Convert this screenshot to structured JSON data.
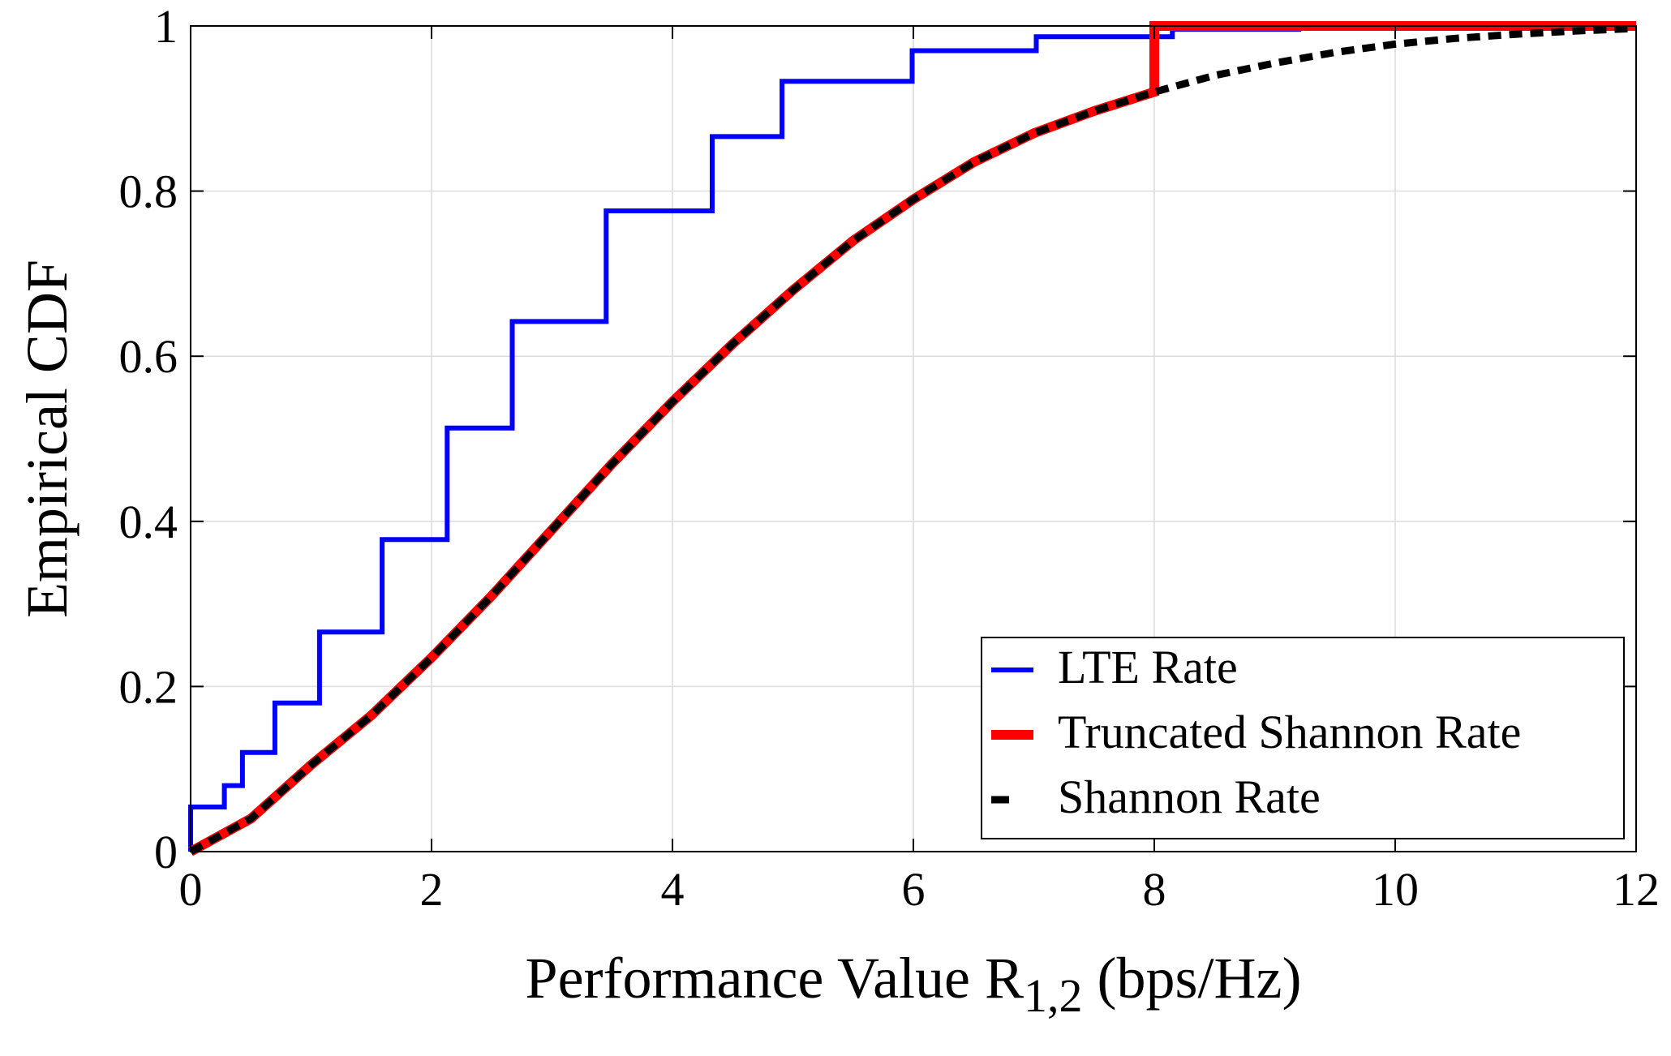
{
  "chart_data": {
    "type": "line",
    "title": "",
    "xlabel": {
      "main": "Performance Value R",
      "subscript": "1,2",
      "unit": " (bps/Hz)"
    },
    "ylabel": "Empirical CDF",
    "xlim": [
      0,
      12
    ],
    "ylim": [
      0,
      1
    ],
    "xticks": [
      0,
      2,
      4,
      6,
      8,
      10,
      12
    ],
    "yticks": [
      0,
      0.2,
      0.4,
      0.6,
      0.8,
      1
    ],
    "xtick_labels": [
      "0",
      "2",
      "4",
      "6",
      "8",
      "10",
      "12"
    ],
    "ytick_labels": [
      "0",
      "0.2",
      "0.4",
      "0.6",
      "0.8",
      "1"
    ],
    "grid": true,
    "legend_position": "bottom-right",
    "series": [
      {
        "name": "LTE Rate",
        "style": "step",
        "color": "#0000ff",
        "x": [
          0,
          0,
          0.28,
          0.28,
          0.43,
          0.43,
          0.7,
          0.7,
          1.07,
          1.07,
          1.59,
          1.59,
          2.13,
          2.13,
          2.67,
          2.67,
          3.45,
          3.45,
          4.33,
          4.33,
          4.91,
          4.91,
          5.99,
          5.99,
          7.02,
          7.02,
          8.15,
          8.15,
          9.22
        ],
        "y": [
          0,
          0.054,
          0.054,
          0.08,
          0.08,
          0.12,
          0.12,
          0.18,
          0.18,
          0.266,
          0.266,
          0.378,
          0.378,
          0.513,
          0.513,
          0.642,
          0.642,
          0.776,
          0.776,
          0.866,
          0.866,
          0.933,
          0.933,
          0.97,
          0.97,
          0.987,
          0.987,
          0.996,
          0.996
        ]
      },
      {
        "name": "Truncated Shannon Rate",
        "style": "solid",
        "color": "#ff0000",
        "x": [
          0,
          0.5,
          1,
          1.5,
          2,
          2.5,
          3,
          3.5,
          4,
          4.5,
          5,
          5.5,
          6,
          6.5,
          7,
          7.5,
          8,
          8,
          12
        ],
        "y": [
          0,
          0.04,
          0.105,
          0.165,
          0.235,
          0.31,
          0.39,
          0.47,
          0.545,
          0.615,
          0.68,
          0.74,
          0.79,
          0.835,
          0.87,
          0.897,
          0.92,
          1,
          1
        ]
      },
      {
        "name": "Shannon Rate",
        "style": "dashed",
        "color": "#000000",
        "x": [
          0,
          0.5,
          1,
          1.5,
          2,
          2.5,
          3,
          3.5,
          4,
          4.5,
          5,
          5.5,
          6,
          6.5,
          7,
          7.5,
          8,
          8.5,
          9,
          9.5,
          10,
          10.5,
          11,
          11.5,
          12
        ],
        "y": [
          0,
          0.04,
          0.105,
          0.165,
          0.235,
          0.31,
          0.39,
          0.47,
          0.545,
          0.615,
          0.68,
          0.74,
          0.79,
          0.835,
          0.87,
          0.897,
          0.92,
          0.94,
          0.955,
          0.968,
          0.978,
          0.985,
          0.99,
          0.994,
          0.997
        ]
      }
    ]
  }
}
